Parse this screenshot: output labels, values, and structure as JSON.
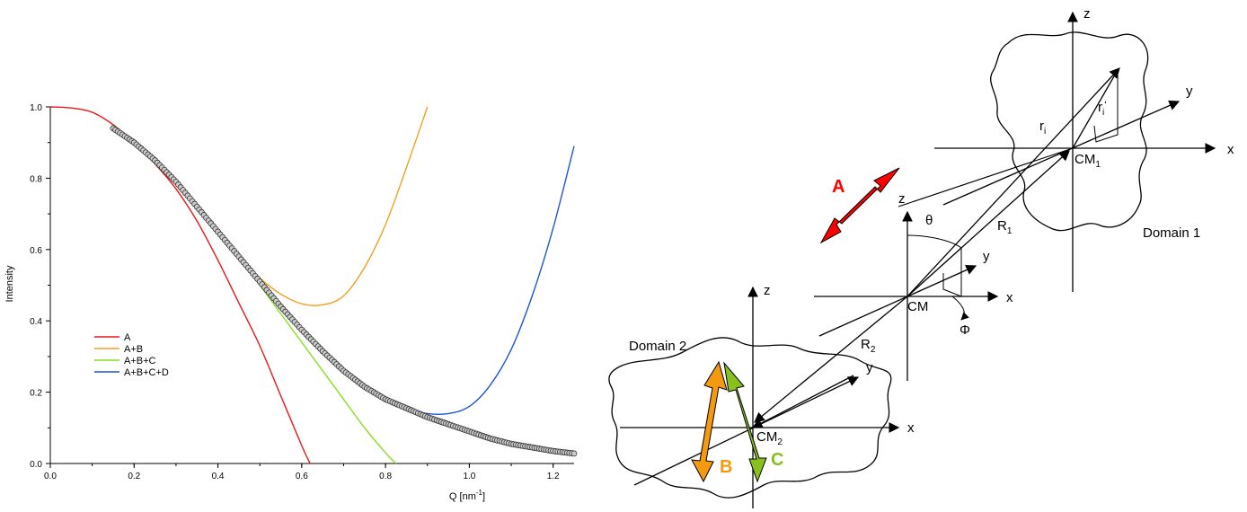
{
  "chart_data": {
    "type": "line",
    "xlabel": "Q [nm",
    "xlabel_sup": "-1",
    "xlabel_end": "]",
    "ylabel": "Intensity",
    "xlim": [
      0.0,
      1.25
    ],
    "ylim": [
      0.0,
      1.0
    ],
    "x_ticks": [
      "0.0",
      "0.2",
      "0.4",
      "0.6",
      "0.8",
      "1.0",
      "1.2"
    ],
    "x_tick_values": [
      0.0,
      0.2,
      0.4,
      0.6,
      0.8,
      1.0,
      1.2
    ],
    "y_ticks": [
      "0.0",
      "0.2",
      "0.4",
      "0.6",
      "0.8",
      "1.0"
    ],
    "y_tick_values": [
      0.0,
      0.2,
      0.4,
      0.6,
      0.8,
      1.0
    ],
    "grid": false,
    "legend_position": "middle-left",
    "series": [
      {
        "name": "A",
        "color": "#e81818",
        "x": [
          0.0,
          0.05,
          0.1,
          0.15,
          0.2,
          0.25,
          0.3,
          0.35,
          0.4,
          0.45,
          0.5,
          0.55,
          0.6,
          0.62
        ],
        "y": [
          1.0,
          0.997,
          0.985,
          0.95,
          0.9,
          0.84,
          0.77,
          0.68,
          0.57,
          0.45,
          0.33,
          0.19,
          0.05,
          0.0
        ]
      },
      {
        "name": "A+B",
        "color": "#f0a020",
        "x": [
          0.15,
          0.2,
          0.25,
          0.3,
          0.35,
          0.4,
          0.45,
          0.5,
          0.55,
          0.6,
          0.65,
          0.7,
          0.75,
          0.8,
          0.85,
          0.9
        ],
        "y": [
          0.94,
          0.9,
          0.85,
          0.79,
          0.72,
          0.645,
          0.58,
          0.52,
          0.475,
          0.448,
          0.445,
          0.47,
          0.55,
          0.67,
          0.83,
          1.0
        ]
      },
      {
        "name": "A+B+C",
        "color": "#88dd22",
        "x": [
          0.15,
          0.2,
          0.25,
          0.3,
          0.35,
          0.4,
          0.45,
          0.5,
          0.55,
          0.6,
          0.65,
          0.7,
          0.75,
          0.8,
          0.825
        ],
        "y": [
          0.94,
          0.9,
          0.85,
          0.79,
          0.725,
          0.655,
          0.575,
          0.5,
          0.42,
          0.34,
          0.26,
          0.18,
          0.1,
          0.03,
          0.0
        ]
      },
      {
        "name": "A+B+C+D",
        "color": "#1f55d0",
        "x": [
          0.15,
          0.2,
          0.25,
          0.3,
          0.35,
          0.4,
          0.45,
          0.5,
          0.55,
          0.6,
          0.65,
          0.7,
          0.75,
          0.8,
          0.85,
          0.9,
          0.95,
          1.0,
          1.05,
          1.1,
          1.15,
          1.2,
          1.25
        ],
        "y": [
          0.94,
          0.9,
          0.85,
          0.79,
          0.72,
          0.65,
          0.58,
          0.51,
          0.44,
          0.375,
          0.315,
          0.26,
          0.215,
          0.18,
          0.155,
          0.14,
          0.14,
          0.16,
          0.22,
          0.32,
          0.47,
          0.66,
          0.89
        ]
      },
      {
        "name": "",
        "role": "experimental-data",
        "marker": "circle",
        "color": "#444444",
        "x": [
          0.15,
          0.2,
          0.25,
          0.3,
          0.35,
          0.4,
          0.45,
          0.5,
          0.55,
          0.6,
          0.65,
          0.7,
          0.75,
          0.8,
          0.85,
          0.9,
          0.95,
          1.0,
          1.05,
          1.1,
          1.15,
          1.2,
          1.25
        ],
        "y": [
          0.94,
          0.9,
          0.85,
          0.79,
          0.72,
          0.65,
          0.58,
          0.51,
          0.44,
          0.375,
          0.315,
          0.26,
          0.215,
          0.18,
          0.155,
          0.13,
          0.11,
          0.09,
          0.07,
          0.055,
          0.045,
          0.035,
          0.028
        ]
      }
    ]
  },
  "diagram": {
    "label_A": "A",
    "label_B": "B",
    "label_C": "C",
    "colors": {
      "A": "#ff0000",
      "B": "#f39a10",
      "C": "#88c020"
    },
    "domain1": {
      "name": "Domain 1",
      "axis_x": "x",
      "axis_y": "y",
      "axis_z": "z",
      "cm": "CM",
      "cm_sub": "1",
      "r": "r",
      "r_sub": "i",
      "rp": "r",
      "rp_sub": "i",
      "rp_mark": "‘"
    },
    "center": {
      "cm": "CM",
      "axis_x": "x",
      "axis_y": "y",
      "axis_z": "z",
      "theta": "θ",
      "phi": "Φ",
      "R1": "R",
      "R1_sub": "1",
      "R2": "R",
      "R2_sub": "2"
    },
    "domain2": {
      "name": "Domain 2",
      "axis_x": "x",
      "axis_y": "y",
      "axis_z": "z",
      "cm": "CM",
      "cm_sub": "2"
    }
  }
}
